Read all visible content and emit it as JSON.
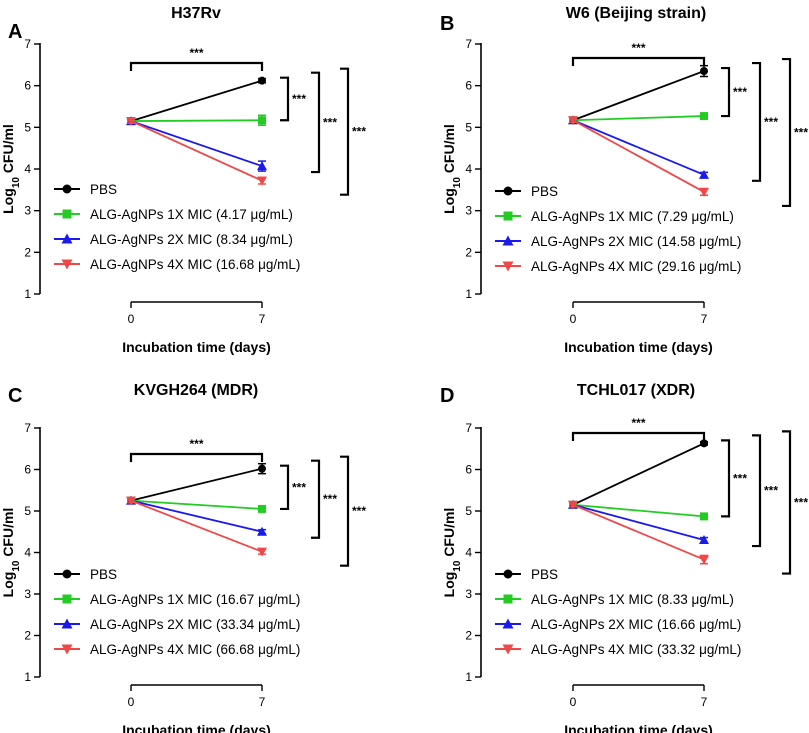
{
  "chart_data": [
    {
      "type": "line",
      "panel": "A",
      "title": "H37Rv",
      "xlabel": "Incubation time (days)",
      "ylabel": "Log10 CFU/ml",
      "ylim": [
        1,
        7
      ],
      "yticks": [
        1,
        2,
        3,
        4,
        5,
        6,
        7
      ],
      "x": [
        0,
        7
      ],
      "x_tick_labels": [
        "0",
        "7"
      ],
      "series": [
        {
          "name": "PBS",
          "color": "#000000",
          "marker": "circle",
          "values": [
            5.15,
            6.12
          ],
          "errors": [
            0.05,
            0.05
          ]
        },
        {
          "name": "ALG-AgNPs 1X MIC (4.17 μg/mL)",
          "color": "#22cc22",
          "marker": "square",
          "values": [
            5.15,
            5.17
          ],
          "errors": [
            0.05,
            0.12
          ]
        },
        {
          "name": "ALG-AgNPs 2X MIC (8.34 μg/mL)",
          "color": "#1a1aee",
          "marker": "triangle-up",
          "values": [
            5.15,
            4.07
          ],
          "errors": [
            0.05,
            0.12
          ]
        },
        {
          "name": "ALG-AgNPs 4X MIC (16.68 μg/mL)",
          "color": "#f04848",
          "marker": "triangle-down",
          "values": [
            5.15,
            3.72
          ],
          "errors": [
            0.05,
            0.08
          ]
        }
      ],
      "significance": [
        {
          "label": "***",
          "between": "x"
        },
        {
          "label": "***"
        },
        {
          "label": "***"
        },
        {
          "label": "***"
        }
      ]
    },
    {
      "type": "line",
      "panel": "B",
      "title": "W6 (Beijing strain)",
      "xlabel": "Incubation time (days)",
      "ylabel": "Log10 CFU/ml",
      "ylim": [
        1,
        7
      ],
      "yticks": [
        1,
        2,
        3,
        4,
        5,
        6,
        7
      ],
      "x": [
        0,
        7
      ],
      "x_tick_labels": [
        "0",
        "7"
      ],
      "series": [
        {
          "name": "PBS",
          "color": "#000000",
          "marker": "circle",
          "values": [
            5.17,
            6.35
          ],
          "errors": [
            0.05,
            0.13
          ]
        },
        {
          "name": "ALG-AgNPs 1X MIC (7.29 μg/mL)",
          "color": "#22cc22",
          "marker": "square",
          "values": [
            5.17,
            5.27
          ],
          "errors": [
            0.05,
            0.04
          ]
        },
        {
          "name": "ALG-AgNPs 2X MIC (14.58 μg/mL)",
          "color": "#1a1aee",
          "marker": "triangle-up",
          "values": [
            5.17,
            3.86
          ],
          "errors": [
            0.05,
            0.06
          ]
        },
        {
          "name": "ALG-AgNPs 4X MIC (29.16 μg/mL)",
          "color": "#f04848",
          "marker": "triangle-down",
          "values": [
            5.17,
            3.45
          ],
          "errors": [
            0.05,
            0.08
          ]
        }
      ],
      "significance": [
        {
          "label": "***",
          "between": "x"
        },
        {
          "label": "***"
        },
        {
          "label": "***"
        },
        {
          "label": "***"
        }
      ]
    },
    {
      "type": "line",
      "panel": "C",
      "title": "KVGH264 (MDR)",
      "xlabel": "Incubation time (days)",
      "ylabel": "Log10 CFU/ml",
      "ylim": [
        1,
        7
      ],
      "yticks": [
        1,
        2,
        3,
        4,
        5,
        6,
        7
      ],
      "x": [
        0,
        7
      ],
      "x_tick_labels": [
        "0",
        "7"
      ],
      "series": [
        {
          "name": "PBS",
          "color": "#000000",
          "marker": "circle",
          "values": [
            5.25,
            6.02
          ],
          "errors": [
            0.05,
            0.12
          ]
        },
        {
          "name": "ALG-AgNPs 1X MIC (16.67 μg/mL)",
          "color": "#22cc22",
          "marker": "square",
          "values": [
            5.25,
            5.05
          ],
          "errors": [
            0.05,
            0.04
          ]
        },
        {
          "name": "ALG-AgNPs 2X MIC (33.34 μg/mL)",
          "color": "#1a1aee",
          "marker": "triangle-up",
          "values": [
            5.25,
            4.5
          ],
          "errors": [
            0.05,
            0.05
          ]
        },
        {
          "name": "ALG-AgNPs 4X MIC (66.68 μg/mL)",
          "color": "#f04848",
          "marker": "triangle-down",
          "values": [
            5.25,
            4.02
          ],
          "errors": [
            0.05,
            0.06
          ]
        }
      ],
      "significance": [
        {
          "label": "***",
          "between": "x"
        },
        {
          "label": "***"
        },
        {
          "label": "***"
        },
        {
          "label": "***"
        }
      ]
    },
    {
      "type": "line",
      "panel": "D",
      "title": "TCHL017 (XDR)",
      "xlabel": "Incubation time (days)",
      "ylabel": "Log10 CFU/ml",
      "ylim": [
        1,
        7
      ],
      "yticks": [
        1,
        2,
        3,
        4,
        5,
        6,
        7
      ],
      "x": [
        0,
        7
      ],
      "x_tick_labels": [
        "0",
        "7"
      ],
      "series": [
        {
          "name": "PBS",
          "color": "#000000",
          "marker": "circle",
          "values": [
            5.15,
            6.63
          ],
          "errors": [
            0.05,
            0.04
          ]
        },
        {
          "name": "ALG-AgNPs 1X MIC (8.33 μg/mL)",
          "color": "#22cc22",
          "marker": "square",
          "values": [
            5.15,
            4.87
          ],
          "errors": [
            0.05,
            0.05
          ]
        },
        {
          "name": "ALG-AgNPs 2X MIC (16.66 μg/mL)",
          "color": "#1a1aee",
          "marker": "triangle-up",
          "values": [
            5.15,
            4.3
          ],
          "errors": [
            0.05,
            0.06
          ]
        },
        {
          "name": "ALG-AgNPs 4X MIC (33.32 μg/mL)",
          "color": "#f04848",
          "marker": "triangle-down",
          "values": [
            5.15,
            3.83
          ],
          "errors": [
            0.05,
            0.1
          ]
        }
      ],
      "significance": [
        {
          "label": "***",
          "between": "x"
        },
        {
          "label": "***"
        },
        {
          "label": "***"
        },
        {
          "label": "***"
        }
      ]
    }
  ]
}
